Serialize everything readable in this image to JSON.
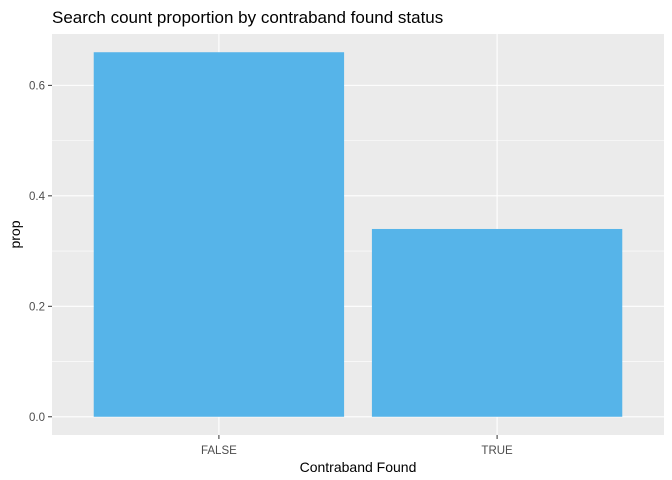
{
  "chart_data": {
    "type": "bar",
    "title": "Search count proportion by contraband found status",
    "xlabel": "Contraband Found",
    "ylabel": "prop",
    "categories": [
      "FALSE",
      "TRUE"
    ],
    "values": [
      0.66,
      0.34
    ],
    "ylim": [
      -0.033,
      0.693
    ],
    "yticks": [
      0.0,
      0.2,
      0.4,
      0.6
    ],
    "ytick_labels": [
      "0.0",
      "0.2",
      "0.4",
      "0.6"
    ],
    "bar_color": "#56B4E9",
    "panel_background": "#EBEBEB",
    "grid": true,
    "legend": "none"
  }
}
